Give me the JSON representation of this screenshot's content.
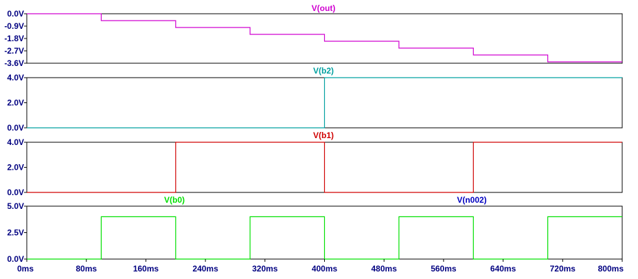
{
  "chart_data": {
    "type": "line",
    "x_unit": "ms",
    "xlim": [
      0,
      800
    ],
    "x_ticks": [
      {
        "value": 0,
        "label": "0ms"
      },
      {
        "value": 80,
        "label": "80ms"
      },
      {
        "value": 160,
        "label": "160ms"
      },
      {
        "value": 240,
        "label": "240ms"
      },
      {
        "value": 320,
        "label": "320ms"
      },
      {
        "value": 400,
        "label": "400ms"
      },
      {
        "value": 480,
        "label": "480ms"
      },
      {
        "value": 560,
        "label": "560ms"
      },
      {
        "value": 640,
        "label": "640ms"
      },
      {
        "value": 720,
        "label": "720ms"
      },
      {
        "value": 800,
        "label": "800ms"
      }
    ],
    "panes": [
      {
        "id": "out",
        "ylim": [
          -3.6,
          0.0
        ],
        "y_ticks": [
          {
            "value": 0.0,
            "label": "0.0V"
          },
          {
            "value": -0.9,
            "label": "-0.9V"
          },
          {
            "value": -1.8,
            "label": "-1.8V"
          },
          {
            "value": -2.7,
            "label": "-2.7V"
          },
          {
            "value": -3.6,
            "label": "-3.6V"
          }
        ],
        "series": [
          {
            "name": "V(out)",
            "color": "#d000d0",
            "x": [
              0,
              100,
              100,
              200,
              200,
              300,
              300,
              400,
              400,
              500,
              500,
              600,
              600,
              700,
              700,
              800
            ],
            "y": [
              0.0,
              0.0,
              -0.5,
              -0.5,
              -1.0,
              -1.0,
              -1.5,
              -1.5,
              -2.0,
              -2.0,
              -2.5,
              -2.5,
              -3.0,
              -3.0,
              -3.5,
              -3.5
            ]
          }
        ]
      },
      {
        "id": "b2",
        "ylim": [
          0.0,
          4.0
        ],
        "y_ticks": [
          {
            "value": 4.0,
            "label": "4.0V"
          },
          {
            "value": 2.0,
            "label": "2.0V"
          },
          {
            "value": 0.0,
            "label": "0.0V"
          }
        ],
        "series": [
          {
            "name": "V(b2)",
            "color": "#00a0a0",
            "x": [
              0,
              400,
              400,
              800
            ],
            "y": [
              0.0,
              0.0,
              4.0,
              4.0
            ]
          }
        ]
      },
      {
        "id": "b1",
        "ylim": [
          0.0,
          4.0
        ],
        "y_ticks": [
          {
            "value": 4.0,
            "label": "4.0V"
          },
          {
            "value": 2.0,
            "label": "2.0V"
          },
          {
            "value": 0.0,
            "label": "0.0V"
          }
        ],
        "series": [
          {
            "name": "V(b1)",
            "color": "#d00000",
            "x": [
              0,
              200,
              200,
              400,
              400,
              600,
              600,
              800
            ],
            "y": [
              0.0,
              0.0,
              4.0,
              4.0,
              0.0,
              0.0,
              4.0,
              4.0
            ]
          }
        ]
      },
      {
        "id": "b0",
        "ylim": [
          0.0,
          5.0
        ],
        "y_ticks": [
          {
            "value": 5.0,
            "label": "5.0V"
          },
          {
            "value": 2.5,
            "label": "2.5V"
          },
          {
            "value": 0.0,
            "label": "0.0V"
          }
        ],
        "series": [
          {
            "name": "V(b0)",
            "color": "#00e000",
            "x": [
              0,
              100,
              100,
              200,
              200,
              300,
              300,
              400,
              400,
              500,
              500,
              600,
              600,
              700,
              700,
              800
            ],
            "y": [
              0.0,
              0.0,
              4.0,
              4.0,
              0.0,
              0.0,
              4.0,
              4.0,
              0.0,
              0.0,
              4.0,
              4.0,
              0.0,
              0.0,
              4.0,
              4.0
            ]
          },
          {
            "name": "V(n002)",
            "color": "#0000c0",
            "x": [],
            "y": []
          }
        ]
      }
    ]
  },
  "colors": {
    "axis_text": "#000080",
    "frame": "#000000",
    "background": "#ffffff"
  }
}
